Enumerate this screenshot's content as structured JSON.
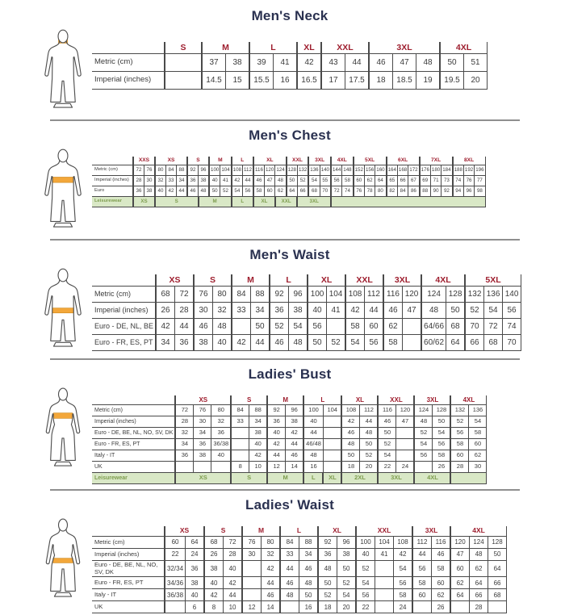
{
  "colors": {
    "title": "#2a3150",
    "red": "#9e1e2e",
    "tx": "#3b3b3b",
    "bd": "#4a4a4a",
    "grbg": "#d9e8c6",
    "grtx": "#7d9c4e",
    "amber": "#f3a73a",
    "fig": "#4f4f4f",
    "sep": "#8f8f8f"
  },
  "sections": [
    {
      "title": "Men's Neck",
      "figure": {
        "type": "male",
        "highlight": "neck"
      },
      "table": {
        "sizes": [
          {
            "label": "S",
            "span": 1
          },
          {
            "label": "M",
            "span": 2
          },
          {
            "label": "L",
            "span": 2
          },
          {
            "label": "XL",
            "span": 1
          },
          {
            "label": "XXL",
            "span": 2
          },
          {
            "label": "3XL",
            "span": 3
          },
          {
            "label": "4XL",
            "span": 2
          }
        ],
        "rows": [
          {
            "label": "Metric  (cm)",
            "cells": [
              "",
              "37",
              "38",
              "39",
              "41",
              "42",
              "43",
              "44",
              "46",
              "47",
              "48",
              "50",
              "51"
            ]
          },
          {
            "label": "Imperial (inches)",
            "cells": [
              "",
              "14.5",
              "15",
              "15.5",
              "16",
              "16.5",
              "17",
              "17.5",
              "18",
              "18.5",
              "19",
              "19.5",
              "20"
            ]
          }
        ]
      }
    },
    {
      "title": "Men's Chest",
      "figure": {
        "type": "male",
        "highlight": "chest"
      },
      "table": {
        "sizes": [
          {
            "label": "XXS",
            "span": 2
          },
          {
            "label": "XS",
            "span": 3
          },
          {
            "label": "S",
            "span": 2
          },
          {
            "label": "M",
            "span": 2
          },
          {
            "label": "L",
            "span": 2
          },
          {
            "label": "XL",
            "span": 3
          },
          {
            "label": "XXL",
            "span": 2
          },
          {
            "label": "3XL",
            "span": 2
          },
          {
            "label": "4XL",
            "span": 2
          },
          {
            "label": "5XL",
            "span": 3
          },
          {
            "label": "6XL",
            "span": 3
          },
          {
            "label": "7XL",
            "span": 3
          },
          {
            "label": "8XL",
            "span": 3
          }
        ],
        "rows": [
          {
            "label": "Metric  (cm)",
            "cells": [
              "72",
              "76",
              "80",
              "84",
              "88",
              "92",
              "96",
              "100",
              "104",
              "108",
              "112",
              "116",
              "120",
              "124",
              "128",
              "132",
              "136",
              "140",
              "144",
              "148",
              "152",
              "156",
              "160",
              "164",
              "168",
              "172",
              "176",
              "180",
              "184",
              "188",
              "192",
              "196"
            ]
          },
          {
            "label": "Imperial (inches)",
            "cells": [
              "28",
              "30",
              "32",
              "33",
              "34",
              "36",
              "38",
              "40",
              "41",
              "42",
              "44",
              "46",
              "47",
              "48",
              "50",
              "52",
              "54",
              "55",
              "56",
              "58",
              "60",
              "62",
              "64",
              "65",
              "66",
              "67",
              "69",
              "71",
              "73",
              "74",
              "76",
              "77"
            ]
          },
          {
            "label": "Euro",
            "cells": [
              "36",
              "38",
              "40",
              "42",
              "44",
              "46",
              "48",
              "50",
              "52",
              "54",
              "56",
              "58",
              "60",
              "62",
              "64",
              "66",
              "68",
              "70",
              "72",
              "74",
              "76",
              "78",
              "80",
              "82",
              "84",
              "86",
              "88",
              "90",
              "92",
              "94",
              "96",
              "98"
            ]
          }
        ],
        "leisure": {
          "label": "Leisurewear",
          "cells": [
            {
              "label": "XS",
              "span": 2
            },
            {
              "label": "S",
              "span": 4
            },
            {
              "label": "M",
              "span": 3
            },
            {
              "label": "L",
              "span": 2
            },
            {
              "label": "XL",
              "span": 2
            },
            {
              "label": "XXL",
              "span": 2
            },
            {
              "label": "3XL",
              "span": 3
            },
            {
              "label": "",
              "span": 14
            }
          ]
        }
      }
    },
    {
      "title": "Men's Waist",
      "figure": {
        "type": "male",
        "highlight": "waist"
      },
      "table": {
        "sizes": [
          {
            "label": "XS",
            "span": 2
          },
          {
            "label": "S",
            "span": 2
          },
          {
            "label": "M",
            "span": 2
          },
          {
            "label": "L",
            "span": 2
          },
          {
            "label": "XL",
            "span": 2
          },
          {
            "label": "XXL",
            "span": 2
          },
          {
            "label": "3XL",
            "span": 2
          },
          {
            "label": "4XL",
            "span": 2
          },
          {
            "label": "5XL",
            "span": 3
          }
        ],
        "rows": [
          {
            "label": "Metric  (cm)",
            "cells": [
              "68",
              "72",
              "76",
              "80",
              "84",
              "88",
              "92",
              "96",
              "100",
              "104",
              "108",
              "112",
              "116",
              "120",
              "124",
              "128",
              "132",
              "136",
              "140"
            ]
          },
          {
            "label": "Imperial (inches)",
            "cells": [
              "26",
              "28",
              "30",
              "32",
              "33",
              "34",
              "36",
              "38",
              "40",
              "41",
              "42",
              "44",
              "46",
              "47",
              "48",
              "50",
              "52",
              "54",
              "56"
            ]
          },
          {
            "label": "Euro - DE, NL, BE",
            "cells": [
              "42",
              "44",
              "46",
              "48",
              "",
              "50",
              "52",
              "54",
              "56",
              "",
              "58",
              "60",
              "62",
              "",
              "64/66",
              "68",
              "70",
              "72",
              "74"
            ]
          },
          {
            "label": "Euro - FR, ES, PT",
            "cells": [
              "34",
              "36",
              "38",
              "40",
              "42",
              "44",
              "46",
              "48",
              "50",
              "52",
              "54",
              "56",
              "58",
              "",
              "60/62",
              "64",
              "66",
              "68",
              "70"
            ]
          }
        ]
      }
    },
    {
      "title": "Ladies' Bust",
      "figure": {
        "type": "female",
        "highlight": "bust"
      },
      "table": {
        "sizes": [
          {
            "label": "XS",
            "span": 3
          },
          {
            "label": "S",
            "span": 2
          },
          {
            "label": "M",
            "span": 2
          },
          {
            "label": "L",
            "span": 2
          },
          {
            "label": "XL",
            "span": 2
          },
          {
            "label": "XXL",
            "span": 2
          },
          {
            "label": "3XL",
            "span": 2
          },
          {
            "label": "4XL",
            "span": 2
          }
        ],
        "rows": [
          {
            "label": "Metric  (cm)",
            "cells": [
              "72",
              "76",
              "80",
              "84",
              "88",
              "92",
              "96",
              "100",
              "104",
              "108",
              "112",
              "116",
              "120",
              "124",
              "128",
              "132",
              "136"
            ]
          },
          {
            "label": "Imperial (inches)",
            "cells": [
              "28",
              "30",
              "32",
              "33",
              "34",
              "36",
              "38",
              "40",
              "",
              "42",
              "44",
              "46",
              "47",
              "48",
              "50",
              "52",
              "54"
            ]
          },
          {
            "label": "Euro -  DE, BE, NL, NO, SV, DK",
            "cells": [
              "32",
              "34",
              "36",
              "",
              "38",
              "40",
              "42",
              "44",
              "",
              "46",
              "48",
              "50",
              "",
              "52",
              "54",
              "56",
              "58"
            ]
          },
          {
            "label": "Euro - FR, ES, PT",
            "cells": [
              "34",
              "36",
              "36/38",
              "",
              "40",
              "42",
              "44",
              "46/48",
              "",
              "48",
              "50",
              "52",
              "",
              "54",
              "56",
              "58",
              "60"
            ]
          },
          {
            "label": "Italy - IT",
            "cells": [
              "36",
              "38",
              "40",
              "",
              "42",
              "44",
              "46",
              "48",
              "",
              "50",
              "52",
              "54",
              "",
              "56",
              "58",
              "60",
              "62"
            ]
          },
          {
            "label": "UK",
            "cells": [
              "",
              "",
              "",
              "8",
              "10",
              "12",
              "14",
              "16",
              "",
              "18",
              "20",
              "22",
              "24",
              "",
              "26",
              "28",
              "30"
            ]
          }
        ],
        "leisure": {
          "label": "Leisurewear",
          "cells": [
            {
              "label": "XS",
              "span": 3
            },
            {
              "label": "S",
              "span": 2
            },
            {
              "label": "M",
              "span": 2
            },
            {
              "label": "L",
              "span": 1
            },
            {
              "label": "XL",
              "span": 1
            },
            {
              "label": "2XL",
              "span": 2
            },
            {
              "label": "3XL",
              "span": 2
            },
            {
              "label": "4XL",
              "span": 2
            },
            {
              "label": "",
              "span": 2
            }
          ]
        }
      }
    },
    {
      "title": "Ladies' Waist",
      "figure": {
        "type": "female",
        "highlight": "waist"
      },
      "table": {
        "sizes": [
          {
            "label": "XS",
            "span": 2
          },
          {
            "label": "S",
            "span": 2
          },
          {
            "label": "M",
            "span": 2
          },
          {
            "label": "L",
            "span": 2
          },
          {
            "label": "XL",
            "span": 2
          },
          {
            "label": "XXL",
            "span": 3
          },
          {
            "label": "3XL",
            "span": 2
          },
          {
            "label": "4XL",
            "span": 3
          }
        ],
        "rows": [
          {
            "label": "Metric  (cm)",
            "cells": [
              "60",
              "64",
              "68",
              "72",
              "76",
              "80",
              "84",
              "88",
              "92",
              "96",
              "100",
              "104",
              "108",
              "112",
              "116",
              "120",
              "124",
              "128"
            ]
          },
          {
            "label": "Imperial (inches)",
            "cells": [
              "22",
              "24",
              "26",
              "28",
              "30",
              "32",
              "33",
              "34",
              "36",
              "38",
              "40",
              "41",
              "42",
              "44",
              "46",
              "47",
              "48",
              "50"
            ]
          },
          {
            "label": "Euro - DE, BE, NL, NO, SV, DK",
            "cells": [
              "32/34",
              "36",
              "38",
              "40",
              "",
              "42",
              "44",
              "46",
              "48",
              "50",
              "52",
              "",
              "54",
              "56",
              "58",
              "60",
              "62",
              "64"
            ]
          },
          {
            "label": "Euro - FR, ES, PT",
            "cells": [
              "34/36",
              "38",
              "40",
              "42",
              "",
              "44",
              "46",
              "48",
              "50",
              "52",
              "54",
              "",
              "56",
              "58",
              "60",
              "62",
              "64",
              "66"
            ]
          },
          {
            "label": "Italy - IT",
            "cells": [
              "36/38",
              "40",
              "42",
              "44",
              "",
              "46",
              "48",
              "50",
              "52",
              "54",
              "56",
              "",
              "58",
              "60",
              "62",
              "64",
              "66",
              "68"
            ]
          },
          {
            "label": "UK",
            "cells": [
              "",
              "6",
              "8",
              "10",
              "12",
              "14",
              "",
              "16",
              "18",
              "20",
              "22",
              "",
              "24",
              "",
              "26",
              "",
              "28",
              ""
            ]
          }
        ]
      }
    }
  ]
}
